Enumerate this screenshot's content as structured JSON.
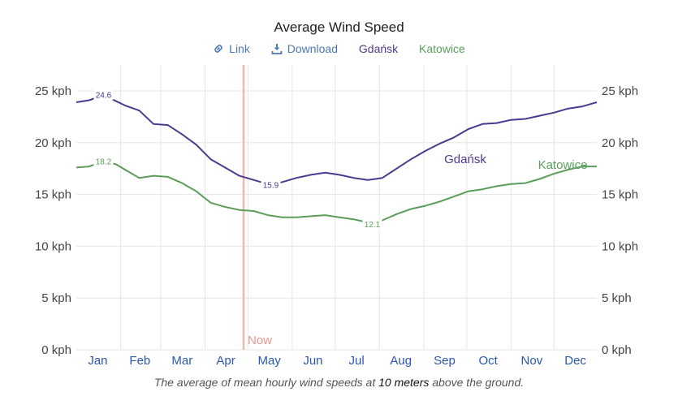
{
  "title": "Average Wind Speed",
  "controls": {
    "link_label": "Link",
    "download_label": "Download"
  },
  "caption": {
    "prefix": "The average of mean hourly wind speeds at ",
    "highlight": "10 meters",
    "suffix": " above the ground."
  },
  "now_label": "Now",
  "colors": {
    "gdansk": "#4b3a8f",
    "katowice": "#5a9e5a",
    "now_line": "#f0b8ae",
    "now_text": "#e59a8e",
    "grid": "#e6e6e6",
    "link": "#4a78b5"
  },
  "chart_data": {
    "type": "line",
    "title": "Average Wind Speed",
    "x_unit": "day of year",
    "y_unit": "kph",
    "ylim": [
      0,
      25
    ],
    "yticks": [
      0,
      5,
      10,
      15,
      20,
      25
    ],
    "ytick_labels": [
      "0 kph",
      "5 kph",
      "10 kph",
      "15 kph",
      "20 kph",
      "25 kph"
    ],
    "months": [
      "Jan",
      "Feb",
      "Mar",
      "Apr",
      "May",
      "Jun",
      "Jul",
      "Aug",
      "Sep",
      "Oct",
      "Nov",
      "Dec"
    ],
    "now_day": 118,
    "grid": true,
    "series": [
      {
        "name": "Gdańsk",
        "x": [
          1,
          10,
          20,
          29,
          35,
          45,
          55,
          65,
          75,
          85,
          95,
          105,
          115,
          125,
          130,
          137,
          145,
          155,
          165,
          175,
          185,
          195,
          205,
          215,
          225,
          235,
          245,
          255,
          265,
          275,
          285,
          295,
          305,
          315,
          325,
          335,
          345,
          355,
          365
        ],
        "y": [
          23.9,
          24.1,
          24.6,
          24.0,
          23.6,
          23.1,
          21.8,
          21.7,
          20.8,
          19.8,
          18.4,
          17.6,
          16.8,
          16.4,
          16.2,
          15.9,
          16.2,
          16.6,
          16.9,
          17.1,
          16.9,
          16.6,
          16.4,
          16.6,
          17.5,
          18.4,
          19.2,
          19.9,
          20.5,
          21.3,
          21.8,
          21.9,
          22.2,
          22.3,
          22.6,
          22.9,
          23.3,
          23.5,
          23.9
        ],
        "min": {
          "day": 137,
          "value": 15.9,
          "label": "15.9"
        },
        "max": {
          "day": 20,
          "value": 24.6,
          "label": "24.6"
        }
      },
      {
        "name": "Katowice",
        "x": [
          1,
          10,
          20,
          29,
          35,
          45,
          55,
          65,
          75,
          85,
          95,
          105,
          115,
          125,
          135,
          145,
          155,
          165,
          175,
          185,
          195,
          205,
          208,
          215,
          225,
          235,
          245,
          255,
          265,
          275,
          285,
          295,
          305,
          315,
          325,
          335,
          345,
          355,
          365
        ],
        "y": [
          17.6,
          17.7,
          18.2,
          17.9,
          17.4,
          16.6,
          16.8,
          16.7,
          16.1,
          15.3,
          14.2,
          13.8,
          13.5,
          13.4,
          13.0,
          12.8,
          12.8,
          12.9,
          13.0,
          12.8,
          12.6,
          12.3,
          12.1,
          12.5,
          13.1,
          13.6,
          13.9,
          14.3,
          14.8,
          15.3,
          15.5,
          15.8,
          16.0,
          16.1,
          16.5,
          17.0,
          17.4,
          17.7,
          17.7
        ],
        "min": {
          "day": 208,
          "value": 12.1,
          "label": "12.1"
        },
        "max": {
          "day": 20,
          "value": 18.2,
          "label": "18.2"
        }
      }
    ]
  }
}
